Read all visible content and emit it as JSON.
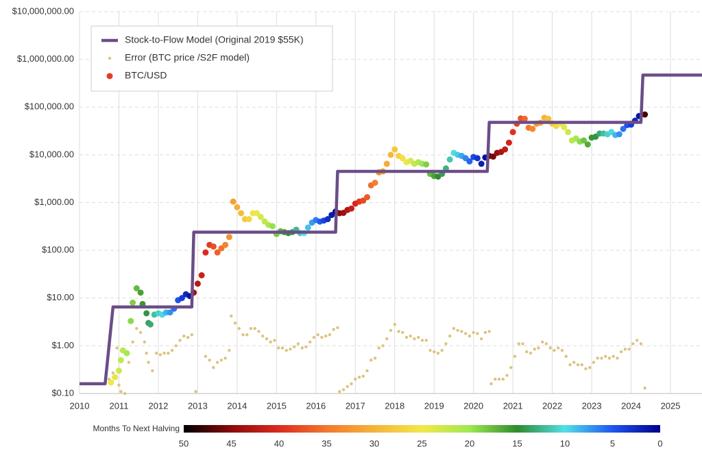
{
  "chart_data": {
    "type": "scatter",
    "log_y": true,
    "grid": true,
    "xlim": [
      2010,
      2025.8
    ],
    "xticks": [
      2010,
      2011,
      2012,
      2013,
      2014,
      2015,
      2016,
      2017,
      2018,
      2019,
      2020,
      2021,
      2022,
      2023,
      2024,
      2025
    ],
    "ylim": [
      0.1,
      10000000
    ],
    "yticks": [
      {
        "value": 0.1,
        "label": "$0.10"
      },
      {
        "value": 1,
        "label": "$1.00"
      },
      {
        "value": 10,
        "label": "$10.00"
      },
      {
        "value": 100,
        "label": "$100.00"
      },
      {
        "value": 1000,
        "label": "$1,000.00"
      },
      {
        "value": 10000,
        "label": "$10,000.00"
      },
      {
        "value": 100000,
        "label": "$100,000.00"
      },
      {
        "value": 1000000,
        "label": "$1,000,000.00"
      },
      {
        "value": 10000000,
        "label": "$10,000,000.00"
      }
    ],
    "legend": "top-left",
    "series": [
      {
        "name": "Stock-to-Flow Model (Original 2019 $55K)",
        "kind": "line",
        "color": "#6b4d87",
        "x": [
          2010,
          2010.65,
          2010.85,
          2012.85,
          2012.9,
          2016.5,
          2016.55,
          2020.35,
          2020.4,
          2024.25,
          2024.3,
          2025.8
        ],
        "values": [
          0.16,
          0.16,
          6.5,
          6.5,
          240,
          240,
          4500,
          4500,
          48000,
          48000,
          470000,
          470000
        ]
      },
      {
        "name": "Error (BTC price /S2F model)",
        "kind": "dots",
        "color": "#dcc47e",
        "x": [
          2010.75,
          2010.85,
          2010.95,
          2011.0,
          2011.05,
          2011.15,
          2011.25,
          2011.35,
          2011.45,
          2011.55,
          2011.65,
          2011.7,
          2011.75,
          2011.85,
          2011.95,
          2012.05,
          2012.15,
          2012.25,
          2012.35,
          2012.45,
          2012.55,
          2012.65,
          2012.75,
          2012.85,
          2012.95,
          2013.2,
          2013.3,
          2013.4,
          2013.5,
          2013.6,
          2013.7,
          2013.8,
          2013.85,
          2013.95,
          2014.05,
          2014.15,
          2014.25,
          2014.35,
          2014.45,
          2014.55,
          2014.65,
          2014.75,
          2014.85,
          2014.95,
          2015.05,
          2015.15,
          2015.25,
          2015.35,
          2015.45,
          2015.55,
          2015.65,
          2015.75,
          2015.85,
          2015.95,
          2016.05,
          2016.15,
          2016.25,
          2016.35,
          2016.45,
          2016.55,
          2016.6,
          2016.7,
          2016.8,
          2016.9,
          2017.0,
          2017.1,
          2017.2,
          2017.3,
          2017.4,
          2017.5,
          2017.6,
          2017.7,
          2017.8,
          2017.9,
          2018.0,
          2018.1,
          2018.2,
          2018.3,
          2018.4,
          2018.5,
          2018.6,
          2018.7,
          2018.8,
          2018.9,
          2019.0,
          2019.1,
          2019.2,
          2019.3,
          2019.4,
          2019.5,
          2019.6,
          2019.7,
          2019.8,
          2019.9,
          2020.0,
          2020.1,
          2020.2,
          2020.3,
          2020.4,
          2020.45,
          2020.55,
          2020.65,
          2020.75,
          2020.85,
          2020.95,
          2021.05,
          2021.15,
          2021.25,
          2021.35,
          2021.45,
          2021.55,
          2021.65,
          2021.75,
          2021.85,
          2021.95,
          2022.05,
          2022.15,
          2022.25,
          2022.35,
          2022.45,
          2022.55,
          2022.65,
          2022.75,
          2022.85,
          2022.95,
          2023.05,
          2023.15,
          2023.25,
          2023.35,
          2023.45,
          2023.55,
          2023.65,
          2023.75,
          2023.85,
          2023.95,
          2024.05,
          2024.15,
          2024.25,
          2024.35
        ],
        "values": [
          0.2,
          0.27,
          0.9,
          0.15,
          0.11,
          0.1,
          0.45,
          1.2,
          2.3,
          1.9,
          1.2,
          0.7,
          0.45,
          0.3,
          0.7,
          0.65,
          0.7,
          0.7,
          0.8,
          1.0,
          1.3,
          1.6,
          1.5,
          1.7,
          0.11,
          0.6,
          0.5,
          0.35,
          0.45,
          0.5,
          0.55,
          0.8,
          4.2,
          3,
          2.3,
          1.7,
          1.7,
          2.3,
          2.3,
          2,
          1.6,
          1.4,
          1.2,
          1.3,
          0.9,
          0.9,
          0.8,
          0.85,
          0.95,
          1.1,
          0.9,
          0.95,
          1.2,
          1.5,
          1.7,
          1.5,
          1.6,
          1.7,
          2.2,
          2.4,
          0.11,
          0.12,
          0.14,
          0.16,
          0.2,
          0.22,
          0.23,
          0.3,
          0.5,
          0.55,
          0.9,
          1.0,
          1.4,
          2.1,
          2.8,
          2.0,
          1.9,
          1.5,
          1.6,
          1.4,
          1.5,
          1.3,
          1.3,
          0.8,
          0.75,
          0.7,
          0.8,
          1.1,
          1.6,
          2.3,
          2.1,
          2.0,
          1.8,
          1.6,
          1.9,
          1.8,
          1.4,
          1.9,
          2.0,
          0.16,
          0.2,
          0.2,
          0.2,
          0.24,
          0.35,
          0.6,
          1.1,
          1.1,
          0.75,
          0.7,
          0.85,
          0.9,
          1.2,
          1.1,
          0.9,
          0.8,
          0.9,
          0.8,
          0.6,
          0.4,
          0.45,
          0.4,
          0.4,
          0.33,
          0.35,
          0.45,
          0.55,
          0.55,
          0.6,
          0.55,
          0.6,
          0.55,
          0.75,
          0.85,
          0.85,
          1.1,
          1.3,
          1.1,
          0.13
        ]
      },
      {
        "name": "BTC/USD",
        "kind": "colored-dots",
        "color": "#e23b25",
        "x": [
          2010.8,
          2010.9,
          2011.0,
          2011.05,
          2011.1,
          2011.2,
          2011.3,
          2011.35,
          2011.45,
          2011.55,
          2011.6,
          2011.7,
          2011.75,
          2011.8,
          2011.9,
          2012.0,
          2012.1,
          2012.2,
          2012.3,
          2012.4,
          2012.5,
          2012.6,
          2012.7,
          2012.8,
          2012.9,
          2013.0,
          2013.1,
          2013.2,
          2013.3,
          2013.4,
          2013.5,
          2013.6,
          2013.7,
          2013.8,
          2013.9,
          2014.0,
          2014.1,
          2014.2,
          2014.3,
          2014.4,
          2014.5,
          2014.6,
          2014.7,
          2014.8,
          2014.9,
          2015.0,
          2015.1,
          2015.2,
          2015.3,
          2015.4,
          2015.5,
          2015.6,
          2015.7,
          2015.8,
          2015.9,
          2016.0,
          2016.1,
          2016.2,
          2016.3,
          2016.4,
          2016.5,
          2016.6,
          2016.7,
          2016.8,
          2016.9,
          2017.0,
          2017.1,
          2017.2,
          2017.3,
          2017.4,
          2017.5,
          2017.6,
          2017.7,
          2017.8,
          2017.9,
          2018.0,
          2018.1,
          2018.2,
          2018.3,
          2018.4,
          2018.5,
          2018.6,
          2018.7,
          2018.8,
          2018.9,
          2019.0,
          2019.1,
          2019.2,
          2019.3,
          2019.4,
          2019.5,
          2019.6,
          2019.7,
          2019.8,
          2019.9,
          2020.0,
          2020.1,
          2020.2,
          2020.3,
          2020.4,
          2020.5,
          2020.6,
          2020.7,
          2020.8,
          2020.9,
          2021.0,
          2021.1,
          2021.2,
          2021.3,
          2021.4,
          2021.5,
          2021.6,
          2021.7,
          2021.8,
          2021.9,
          2022.0,
          2022.1,
          2022.2,
          2022.3,
          2022.4,
          2022.5,
          2022.6,
          2022.7,
          2022.8,
          2022.9,
          2023.0,
          2023.1,
          2023.2,
          2023.3,
          2023.4,
          2023.5,
          2023.6,
          2023.7,
          2023.8,
          2023.9,
          2024.0,
          2024.1,
          2024.2,
          2024.35
        ],
        "values": [
          0.17,
          0.22,
          0.3,
          0.5,
          0.8,
          0.7,
          3.3,
          8,
          16,
          13,
          7.5,
          4.8,
          3,
          2.8,
          4.5,
          4.8,
          4.5,
          5,
          5,
          6,
          9,
          10,
          12,
          11,
          13,
          20,
          30,
          90,
          130,
          120,
          90,
          110,
          130,
          190,
          1050,
          800,
          600,
          450,
          450,
          600,
          600,
          500,
          400,
          340,
          320,
          220,
          250,
          240,
          230,
          240,
          270,
          230,
          230,
          300,
          380,
          430,
          400,
          420,
          450,
          550,
          650,
          600,
          610,
          700,
          750,
          950,
          1050,
          1100,
          1300,
          2300,
          2600,
          4300,
          4500,
          6500,
          10000,
          13000,
          9500,
          8500,
          7000,
          7500,
          6500,
          7000,
          6500,
          6300,
          4000,
          3600,
          3500,
          4000,
          5200,
          8000,
          11000,
          10000,
          9500,
          8500,
          7300,
          9000,
          8500,
          6500,
          8800,
          9500,
          9200,
          11000,
          11500,
          13000,
          18000,
          30000,
          45000,
          58000,
          57000,
          37000,
          35000,
          45000,
          47000,
          60000,
          57000,
          45000,
          40000,
          45000,
          38000,
          30000,
          20000,
          22000,
          19000,
          20000,
          16500,
          23000,
          24000,
          28000,
          28000,
          27000,
          30000,
          26000,
          27000,
          35000,
          42000,
          43000,
          52000,
          65000,
          70000
        ],
        "months": [
          25.2,
          24,
          22.8,
          22.2,
          21.6,
          20.4,
          19.2,
          18.6,
          17.4,
          16.2,
          15.6,
          14.4,
          13.8,
          13.2,
          12,
          10.8,
          9.6,
          8.4,
          7.2,
          6,
          4.8,
          3.6,
          2.4,
          1.2,
          43.6,
          42.4,
          41.2,
          40,
          38.8,
          37.6,
          36.4,
          35.2,
          34,
          32.8,
          31.6,
          30.4,
          29.2,
          28,
          26.8,
          25.6,
          24.4,
          23.2,
          22,
          20.8,
          19.6,
          18.4,
          17.2,
          16,
          14.8,
          13.6,
          12.4,
          11.2,
          10,
          8.8,
          7.6,
          6.4,
          5.2,
          4,
          2.8,
          1.6,
          0.4,
          45.1,
          43.9,
          42.7,
          41.5,
          40.3,
          39.1,
          37.9,
          36.7,
          35.5,
          34.3,
          33.1,
          31.9,
          30.7,
          29.5,
          28.3,
          27.1,
          25.9,
          24.7,
          23.5,
          22.3,
          21.1,
          19.9,
          18.7,
          17.5,
          16.3,
          15.1,
          13.9,
          12.7,
          11.5,
          10.3,
          9.1,
          7.9,
          6.7,
          5.5,
          4.3,
          3.1,
          1.9,
          0.7,
          46.8,
          45.6,
          44.4,
          43.2,
          42,
          40.8,
          39.6,
          38.4,
          37.2,
          36,
          34.8,
          33.6,
          32.4,
          31.2,
          30,
          28.8,
          27.6,
          26.4,
          25.2,
          24,
          22.8,
          21.6,
          20.4,
          19.2,
          18,
          16.8,
          15.6,
          14.4,
          13.2,
          12,
          10.8,
          9.6,
          8.4,
          7.2,
          6,
          4.8,
          3.6,
          2.4,
          1.2,
          47.4
        ]
      }
    ],
    "colorbar": {
      "label": "Months To Next Halving",
      "lim": [
        50,
        0
      ],
      "ticks": [
        50,
        45,
        40,
        35,
        30,
        25,
        20,
        15,
        10,
        5,
        0
      ],
      "colormap": [
        "#000000",
        "#8b0a0a",
        "#dc2a1e",
        "#f2782e",
        "#f5b43a",
        "#f2e84a",
        "#9ee850",
        "#2e8b2e",
        "#52e0e8",
        "#2055f0",
        "#00008b"
      ]
    }
  }
}
